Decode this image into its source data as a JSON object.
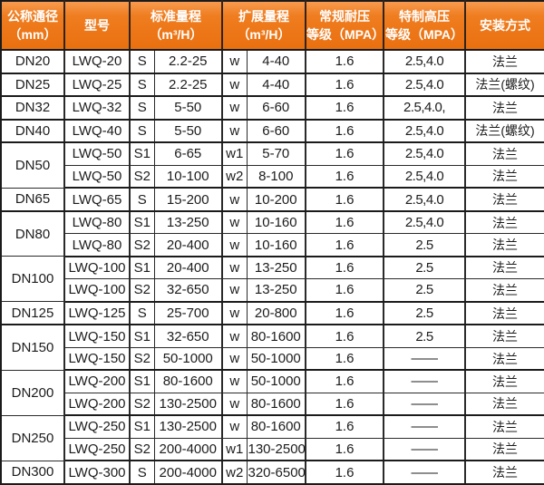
{
  "table": {
    "accent_color": "#ee7a1e",
    "header_text_color": "#ffffff",
    "border_color": "#1b1b1b",
    "header": {
      "columns": [
        {
          "label": "公称通径\n（mm）"
        },
        {
          "label": "型号"
        },
        {
          "label": "标准量程\n（m³/H）"
        },
        {
          "label": "扩展量程\n（m³/H）"
        },
        {
          "label": "常规耐压\n等级（MPA）"
        },
        {
          "label": "特制高压\n等级（MPA）"
        },
        {
          "label": "安装方式"
        }
      ]
    },
    "groups": [
      {
        "dn": "DN20",
        "rows": [
          [
            "LWQ-20",
            "S",
            "2.2-25",
            "w",
            "4-40",
            "1.6",
            "2.5,4.0",
            "法兰"
          ]
        ]
      },
      {
        "dn": "DN25",
        "rows": [
          [
            "LWQ-25",
            "S",
            "2.2-25",
            "w",
            "4-40",
            "1.6",
            "2.5,4.0",
            "法兰(螺纹)"
          ]
        ]
      },
      {
        "dn": "DN32",
        "rows": [
          [
            "LWQ-32",
            "S",
            "5-50",
            "w",
            "6-60",
            "1.6",
            "2.5,4.0,",
            "法兰"
          ]
        ]
      },
      {
        "dn": "DN40",
        "rows": [
          [
            "LWQ-40",
            "S",
            "5-50",
            "w",
            "6-60",
            "1.6",
            "2.5,4.0",
            "法兰(螺纹)"
          ]
        ]
      },
      {
        "dn": "DN50",
        "rows": [
          [
            "LWQ-50",
            "S1",
            "6-65",
            "w1",
            "5-70",
            "1.6",
            "2.5,4.0",
            "法兰"
          ],
          [
            "LWQ-50",
            "S2",
            "10-100",
            "w2",
            "8-100",
            "1.6",
            "2.5,4.0",
            "法兰"
          ]
        ]
      },
      {
        "dn": "DN65",
        "rows": [
          [
            "LWQ-65",
            "S",
            "15-200",
            "w",
            "10-200",
            "1.6",
            "2.5,4.0",
            "法兰"
          ]
        ]
      },
      {
        "dn": "DN80",
        "rows": [
          [
            "LWQ-80",
            "S1",
            "13-250",
            "w",
            "10-160",
            "1.6",
            "2.5,4.0",
            "法兰"
          ],
          [
            "LWQ-80",
            "S2",
            "20-400",
            "w",
            "10-160",
            "1.6",
            "2.5",
            "法兰"
          ]
        ]
      },
      {
        "dn": "DN100",
        "rows": [
          [
            "LWQ-100",
            "S1",
            "20-400",
            "w",
            "13-250",
            "1.6",
            "2.5",
            "法兰"
          ],
          [
            "LWQ-100",
            "S2",
            "32-650",
            "w",
            "13-250",
            "1.6",
            "2.5",
            "法兰"
          ]
        ]
      },
      {
        "dn": "DN125",
        "rows": [
          [
            "LWQ-125",
            "S",
            "25-700",
            "w",
            "20-800",
            "1.6",
            "2.5",
            "法兰"
          ]
        ]
      },
      {
        "dn": "DN150",
        "rows": [
          [
            "LWQ-150",
            "S1",
            "32-650",
            "w",
            "80-1600",
            "1.6",
            "2.5",
            "法兰"
          ],
          [
            "LWQ-150",
            "S2",
            "50-1000",
            "w",
            "50-1000",
            "1.6",
            "——",
            "法兰"
          ]
        ]
      },
      {
        "dn": "DN200",
        "rows": [
          [
            "LWQ-200",
            "S1",
            "80-1600",
            "w",
            "50-1000",
            "1.6",
            "——",
            "法兰"
          ],
          [
            "LWQ-200",
            "S2",
            "130-2500",
            "w",
            "80-1600",
            "1.6",
            "——",
            "法兰"
          ]
        ]
      },
      {
        "dn": "DN250",
        "rows": [
          [
            "LWQ-250",
            "S1",
            "130-2500",
            "w",
            "80-1600",
            "1.6",
            "——",
            "法兰"
          ],
          [
            "LWQ-250",
            "S2",
            "200-4000",
            "w1",
            "130-2500",
            "1.6",
            "——",
            "法兰"
          ]
        ]
      },
      {
        "dn": "DN300",
        "rows": [
          [
            "LWQ-300",
            "S",
            "200-4000",
            "w2",
            "320-6500",
            "1.6",
            "——",
            "法兰"
          ]
        ]
      }
    ]
  }
}
